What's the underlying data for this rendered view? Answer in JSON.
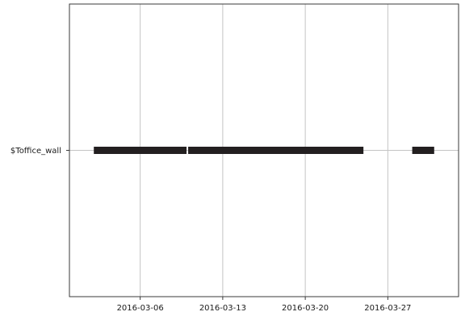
{
  "chart_data": {
    "type": "timeline",
    "title": "",
    "xlabel": "",
    "ylabel": "",
    "categories": [
      "$Toffice_wall"
    ],
    "x_ticks": [
      "2016-03-06",
      "2016-03-13",
      "2016-03-20",
      "2016-03-27"
    ],
    "xlim": [
      "2016-02-29",
      "2016-04-02"
    ],
    "grid": true,
    "legend": "none",
    "colors": {
      "bar": "#231f20",
      "grid": "#c4c4c4",
      "axis": "#3a3a3a",
      "background": "#ffffff"
    },
    "series": [
      {
        "category": "$Toffice_wall",
        "intervals": [
          {
            "start": "2016-03-02",
            "end": "2016-03-10"
          },
          {
            "start": "2016-03-10",
            "end": "2016-03-25"
          },
          {
            "start": "2016-03-29",
            "end": "2016-03-31"
          }
        ]
      }
    ]
  }
}
